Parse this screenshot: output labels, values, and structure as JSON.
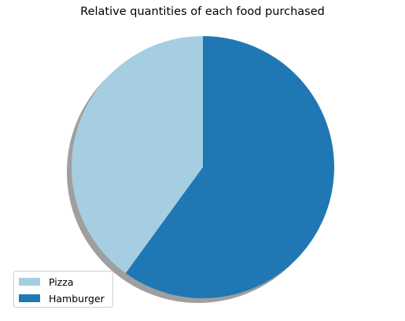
{
  "chart_data": {
    "type": "pie",
    "title": "Relative quantities of each food purchased",
    "slices": [
      {
        "label": "Pizza",
        "value": 40,
        "color": "#a6cee3"
      },
      {
        "label": "Hamburger",
        "value": 60,
        "color": "#1f78b4"
      }
    ],
    "start_angle_deg": 90,
    "direction": "counterclockwise",
    "shadow": true,
    "legend_position": "lower-left"
  }
}
